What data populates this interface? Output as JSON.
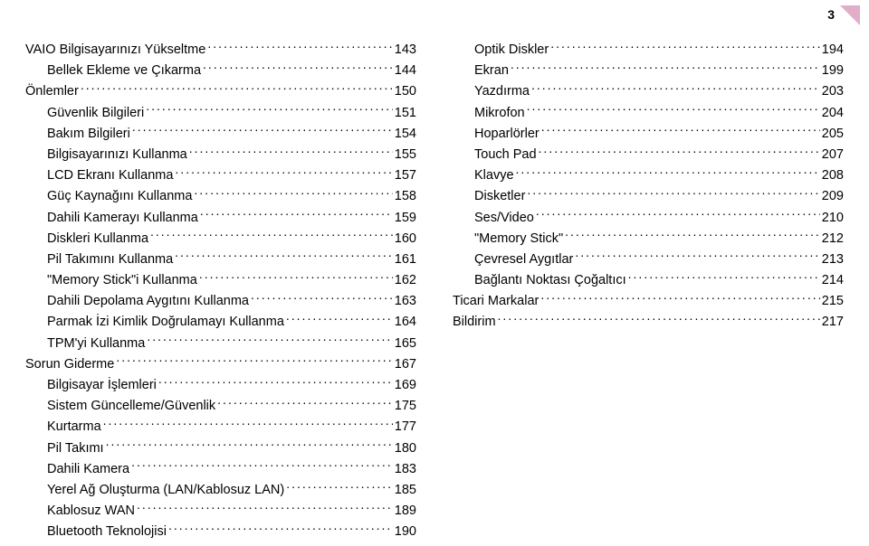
{
  "page_number": "3",
  "left_column": [
    {
      "label": "VAIO Bilgisayarınızı Yükseltme",
      "page": "143",
      "indent": 0
    },
    {
      "label": "Bellek Ekleme ve Çıkarma",
      "page": "144",
      "indent": 1
    },
    {
      "label": "Önlemler",
      "page": "150",
      "indent": 0
    },
    {
      "label": "Güvenlik Bilgileri",
      "page": "151",
      "indent": 1
    },
    {
      "label": "Bakım Bilgileri",
      "page": "154",
      "indent": 1
    },
    {
      "label": "Bilgisayarınızı Kullanma",
      "page": "155",
      "indent": 1
    },
    {
      "label": "LCD Ekranı Kullanma",
      "page": "157",
      "indent": 1
    },
    {
      "label": "Güç Kaynağını Kullanma",
      "page": "158",
      "indent": 1
    },
    {
      "label": "Dahili Kamerayı Kullanma",
      "page": "159",
      "indent": 1
    },
    {
      "label": "Diskleri Kullanma",
      "page": "160",
      "indent": 1
    },
    {
      "label": "Pil Takımını Kullanma",
      "page": "161",
      "indent": 1
    },
    {
      "label": "\"Memory Stick\"i Kullanma",
      "page": "162",
      "indent": 1
    },
    {
      "label": "Dahili Depolama Aygıtını Kullanma",
      "page": "163",
      "indent": 1
    },
    {
      "label": "Parmak İzi Kimlik Doğrulamayı Kullanma",
      "page": "164",
      "indent": 1
    },
    {
      "label": "TPM'yi Kullanma",
      "page": "165",
      "indent": 1
    },
    {
      "label": "Sorun Giderme",
      "page": "167",
      "indent": 0
    },
    {
      "label": "Bilgisayar İşlemleri",
      "page": "169",
      "indent": 1
    },
    {
      "label": "Sistem Güncelleme/Güvenlik",
      "page": "175",
      "indent": 1
    },
    {
      "label": "Kurtarma",
      "page": "177",
      "indent": 1
    },
    {
      "label": "Pil Takımı",
      "page": "180",
      "indent": 1
    },
    {
      "label": "Dahili Kamera",
      "page": "183",
      "indent": 1
    },
    {
      "label": "Yerel Ağ Oluşturma (LAN/Kablosuz LAN)",
      "page": "185",
      "indent": 1
    },
    {
      "label": "Kablosuz WAN",
      "page": "189",
      "indent": 1
    },
    {
      "label": "Bluetooth Teknolojisi",
      "page": "190",
      "indent": 1
    }
  ],
  "right_column": [
    {
      "label": "Optik Diskler",
      "page": "194",
      "indent": 1
    },
    {
      "label": "Ekran",
      "page": "199",
      "indent": 1
    },
    {
      "label": "Yazdırma",
      "page": "203",
      "indent": 1
    },
    {
      "label": "Mikrofon",
      "page": "204",
      "indent": 1
    },
    {
      "label": "Hoparlörler",
      "page": "205",
      "indent": 1
    },
    {
      "label": "Touch Pad",
      "page": "207",
      "indent": 1
    },
    {
      "label": "Klavye",
      "page": "208",
      "indent": 1
    },
    {
      "label": "Disketler",
      "page": "209",
      "indent": 1
    },
    {
      "label": "Ses/Video",
      "page": "210",
      "indent": 1
    },
    {
      "label": "\"Memory Stick\"",
      "page": "212",
      "indent": 1
    },
    {
      "label": "Çevresel Aygıtlar",
      "page": "213",
      "indent": 1
    },
    {
      "label": "Bağlantı Noktası Çoğaltıcı",
      "page": "214",
      "indent": 1
    },
    {
      "label": "Ticari Markalar",
      "page": "215",
      "indent": 0
    },
    {
      "label": "Bildirim",
      "page": "217",
      "indent": 0
    }
  ]
}
